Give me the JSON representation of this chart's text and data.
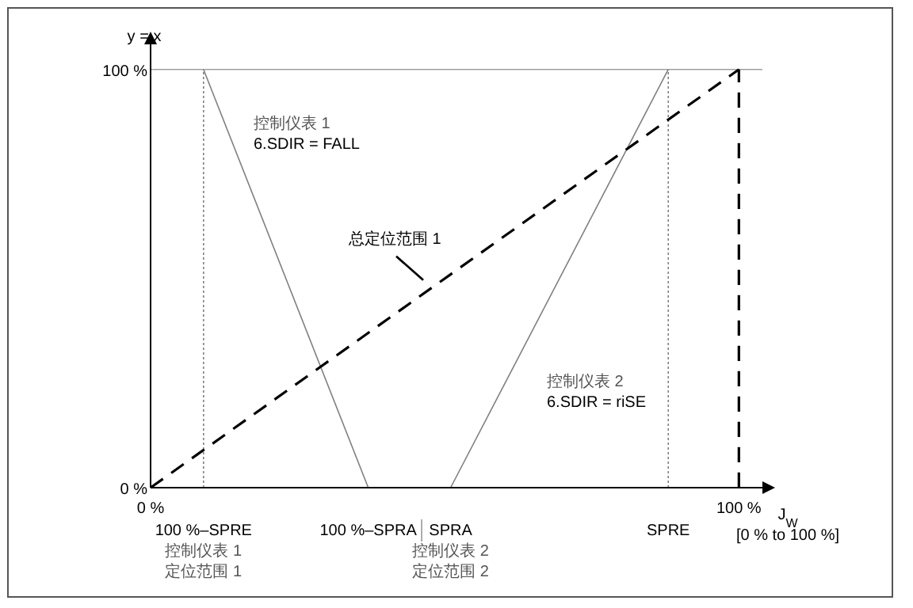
{
  "chart_data": {
    "type": "line",
    "xlabel": "J$_{W}$",
    "ylabel": "y = x",
    "xlim": [
      0,
      104
    ],
    "ylim": [
      0,
      106
    ],
    "xticks": [
      {
        "value": 0,
        "label": "0 %"
      },
      {
        "value": 100,
        "label": "100 %"
      }
    ],
    "yticks": [
      {
        "value": 0,
        "label": "0 %"
      },
      {
        "value": 100,
        "label": "100 %"
      }
    ],
    "series": [
      {
        "name": "控制仪表 1\n6.SDIR = FALL",
        "color": "#808080",
        "x": [
          9,
          37
        ],
        "values": [
          100,
          0
        ],
        "line_style": "solid"
      },
      {
        "name": "控制仪表 2\n6.SDIR = riSE",
        "color": "#808080",
        "x": [
          51,
          88
        ],
        "values": [
          0,
          100
        ],
        "line_style": "solid"
      },
      {
        "name": "总定位范围 1",
        "color": "#000000",
        "x": [
          0,
          100
        ],
        "values": [
          0,
          100
        ],
        "line_style": "dashed"
      }
    ],
    "ref_lines": [
      {
        "axis": "y",
        "value": 100,
        "color": "#a0a0a0",
        "line_style": "solid"
      },
      {
        "axis": "x",
        "value": 9,
        "color": "#808080",
        "line_style": "dotted"
      },
      {
        "axis": "x",
        "value": 88,
        "color": "#808080",
        "line_style": "dotted"
      },
      {
        "axis": "x",
        "value": 100,
        "color": "#000000",
        "line_style": "dashed"
      }
    ],
    "annotations": [
      "[0 % to 100 %]",
      {
        "text": "100 %–SPRE\n控制仪表 1\n定位范围 1",
        "x": 9,
        "y": 0
      },
      {
        "text": "100 %–SPRA",
        "x": 37,
        "y": 0
      },
      {
        "text": "SPRA\n控制仪表 2\n定位范围 2",
        "x": 51,
        "y": 0
      },
      {
        "text": "SPRE",
        "x": 88,
        "y": 0
      }
    ],
    "grid": false
  }
}
